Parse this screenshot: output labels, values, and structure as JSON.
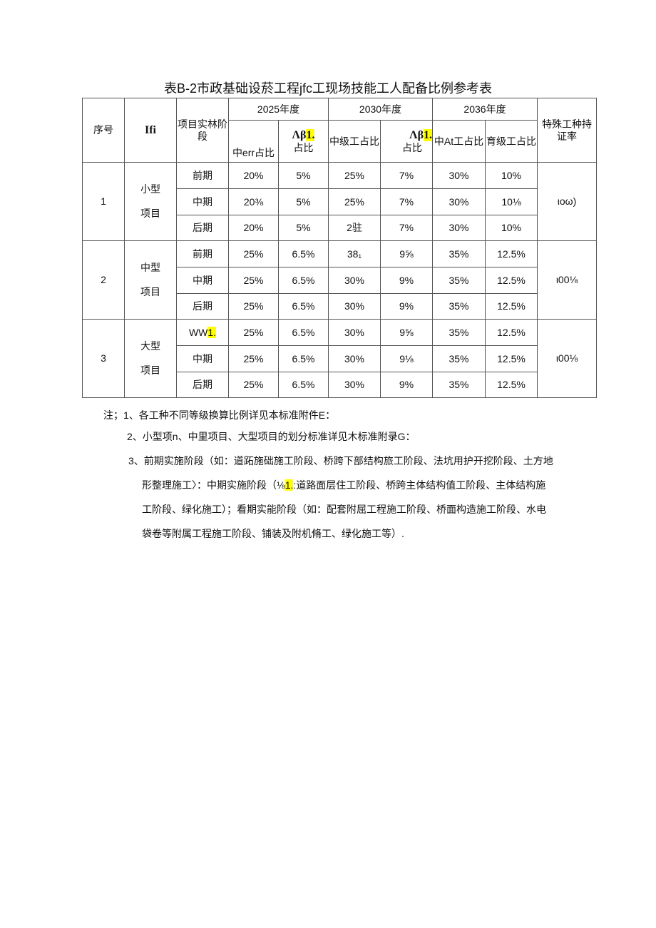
{
  "title": "表B-2市政基础设菸工程jfc工现场技能工人配备比例参考表",
  "header": {
    "no": "序号",
    "type": "Ifi",
    "stage": "项目实林阶段",
    "y2025": "2025年度",
    "y2030": "2030年度",
    "y2036": "2036年度",
    "cert": "特殊工种持证率",
    "c1": "中err占比",
    "c2a": "Λβ",
    "c2h": "1.",
    "c2b": "占比",
    "c3": "中级工占比",
    "c4a": "Λβ",
    "c4h": "1.",
    "c4b": "占比",
    "c5": "中At工占比",
    "c6": "育级工占比"
  },
  "groups": [
    {
      "no": "1",
      "type1": "小型",
      "type2": "项目",
      "cert": "ιoω)",
      "rows": [
        {
          "stage": "前期",
          "v": [
            "20%",
            "5%",
            "25%",
            "7%",
            "30%",
            "10%"
          ]
        },
        {
          "stage": "中期",
          "v": [
            "20⅜",
            "5%",
            "25%",
            "7%",
            "30%",
            "10⅛"
          ]
        },
        {
          "stage": "后期",
          "v": [
            "20%",
            "5%",
            "2驻",
            "7%",
            "30%",
            "10%"
          ]
        }
      ]
    },
    {
      "no": "2",
      "type1": "中型",
      "type2": "项目",
      "cert": "ι00⅛",
      "rows": [
        {
          "stage": "前期",
          "v": [
            "25%",
            "6.5%",
            "38₁",
            "9⅝",
            "35%",
            "12.5%"
          ]
        },
        {
          "stage": "中期",
          "v": [
            "25%",
            "6.5%",
            "30%",
            "9%",
            "35%",
            "12.5%"
          ]
        },
        {
          "stage": "后期",
          "v": [
            "25%",
            "6.5%",
            "30%",
            "9%",
            "35%",
            "12.5%"
          ]
        }
      ]
    },
    {
      "no": "3",
      "type1": "大型",
      "type2": "项目",
      "cert": "ι00⅛",
      "rows": [
        {
          "stage": "WW",
          "stage_hl": "1.",
          "v": [
            "25%",
            "6.5%",
            "30%",
            "9⅝",
            "35%",
            "12.5%"
          ]
        },
        {
          "stage": "中期",
          "v": [
            "25%",
            "6.5%",
            "30%",
            "9⅛",
            "35%",
            "12.5%"
          ]
        },
        {
          "stage": "后期",
          "v": [
            "25%",
            "6.5%",
            "30%",
            "9%",
            "35%",
            "12.5%"
          ]
        }
      ]
    }
  ],
  "notes": {
    "n1": "注；1、各工种不同等级换算比例详见本标准附件E：",
    "n2": "2、小型项n、中里项目、大型项目的划分标准详见木标准附录G：",
    "n3a": "3、前期实施阶段（如：道跖施础施工阶段、桥跨下部结构旅工阶段、法坑用护开挖阶段、土方地",
    "n3b_pre": "形整理施工〉：中期实施阶段（⅛",
    "n3b_hl": "1.",
    "n3b_post": ":道路面层住工阶段、桥跨主体结构值工阶段、主体结构施",
    "n3c": "工阶段、绿化施工）；看期实能阶段（如：配套附屈工程施工阶段、桥面构造施工阶段、水电",
    "n3d": "袋卷等附属工程施工阶段、铺装及附机脩工、绿化施工等）."
  }
}
